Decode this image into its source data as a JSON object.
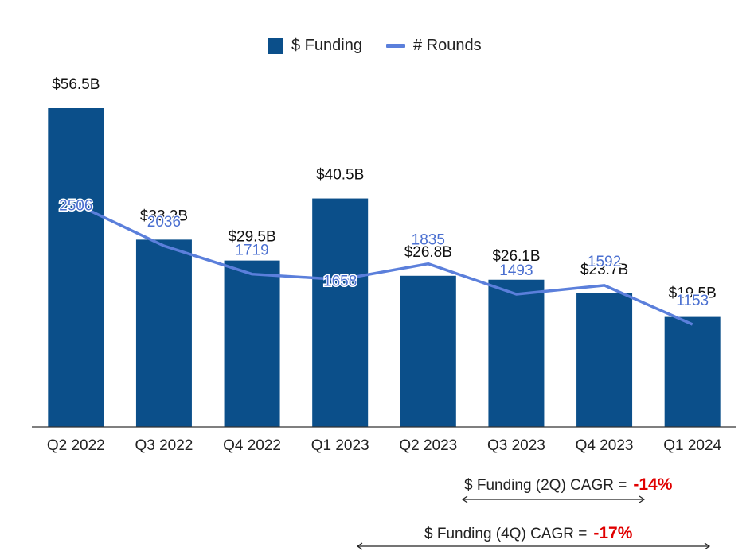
{
  "legend": {
    "bar_label": "$ Funding",
    "line_label": "# Rounds"
  },
  "chart_data": {
    "type": "bar",
    "categories": [
      "Q2 2022",
      "Q3 2022",
      "Q4 2022",
      "Q1 2023",
      "Q2 2023",
      "Q3 2023",
      "Q4 2023",
      "Q1 2024"
    ],
    "series": [
      {
        "name": "$ Funding",
        "type": "bar",
        "values": [
          56.5,
          33.2,
          29.5,
          40.5,
          26.8,
          26.1,
          23.7,
          19.5
        ],
        "labels": [
          "$56.5B",
          "$33.2B",
          "$29.5B",
          "$40.5B",
          "$26.8B",
          "$26.1B",
          "$23.7B",
          "$19.5B"
        ]
      },
      {
        "name": "# Rounds",
        "type": "line",
        "values": [
          2506,
          2036,
          1719,
          1658,
          1835,
          1493,
          1592,
          1153
        ],
        "labels": [
          "2506",
          "2036",
          "1719",
          "1658",
          "1835",
          "1493",
          "1592",
          "1153"
        ]
      }
    ],
    "ylim_funding": [
      0,
      56.5
    ],
    "ylim_rounds": [
      0,
      4800
    ],
    "colors": {
      "bar": "#0b4f8a",
      "line": "#5b7fdb",
      "rounds_label": "#4a6fd0",
      "axis": "#333333"
    }
  },
  "cagr": {
    "two_q": {
      "label": "$ Funding (2Q) CAGR =",
      "value": "-14%"
    },
    "four_q": {
      "label": "$ Funding (4Q) CAGR =",
      "value": "-17%"
    }
  }
}
